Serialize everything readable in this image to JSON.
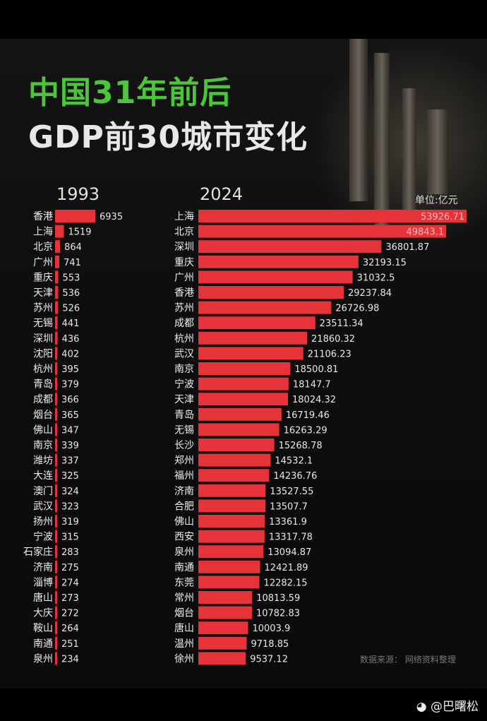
{
  "title_line1": "中国31年前后",
  "title_line2": "GDP前30城市变化",
  "unit": "单位:亿元",
  "source": "数据来源： 网络资料整理",
  "watermark": "@巴曙松",
  "chart_data": [
    {
      "type": "bar",
      "orientation": "horizontal",
      "title": "1993",
      "categories": [
        "香港",
        "上海",
        "北京",
        "广州",
        "重庆",
        "天津",
        "苏州",
        "无锡",
        "深圳",
        "沈阳",
        "杭州",
        "青岛",
        "成都",
        "烟台",
        "佛山",
        "南京",
        "潍坊",
        "大连",
        "澳门",
        "武汉",
        "扬州",
        "宁波",
        "石家庄",
        "济南",
        "淄博",
        "唐山",
        "大庆",
        "鞍山",
        "南通",
        "泉州"
      ],
      "values": [
        6935,
        1519,
        864,
        741,
        553,
        536,
        526,
        441,
        436,
        402,
        395,
        379,
        366,
        365,
        347,
        339,
        337,
        325,
        324,
        323,
        319,
        315,
        283,
        275,
        274,
        273,
        272,
        264,
        251,
        234
      ],
      "color": "#e8323a"
    },
    {
      "type": "bar",
      "orientation": "horizontal",
      "title": "2024",
      "categories": [
        "上海",
        "北京",
        "深圳",
        "重庆",
        "广州",
        "香港",
        "苏州",
        "成都",
        "杭州",
        "武汉",
        "南京",
        "宁波",
        "天津",
        "青岛",
        "无锡",
        "长沙",
        "郑州",
        "福州",
        "济南",
        "合肥",
        "佛山",
        "西安",
        "泉州",
        "南通",
        "东莞",
        "常州",
        "烟台",
        "唐山",
        "温州",
        "徐州"
      ],
      "values": [
        53926.71,
        49843.1,
        36801.87,
        32193.15,
        31032.5,
        29237.84,
        26726.98,
        23511.34,
        21860.32,
        21106.23,
        18500.81,
        18147.7,
        18024.32,
        16719.46,
        16263.29,
        15268.78,
        14532.1,
        14236.76,
        13527.55,
        13507.7,
        13361.9,
        13317.78,
        13094.87,
        12421.89,
        12282.15,
        10813.59,
        10782.83,
        10003.9,
        9718.85,
        9537.12
      ],
      "color": "#e8323a"
    }
  ]
}
